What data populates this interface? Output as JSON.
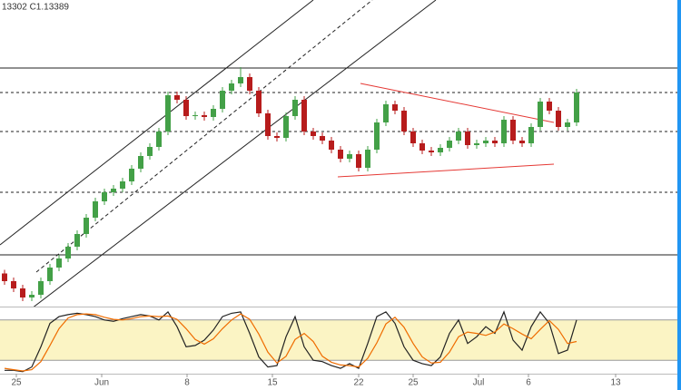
{
  "chart_data": {
    "type": "candlestick",
    "header_text": "13302  C1.13389",
    "x": [
      0,
      1,
      2,
      3,
      4,
      5,
      6,
      7,
      8,
      9,
      10,
      11,
      12,
      13,
      14,
      15,
      16,
      17,
      18,
      19,
      20,
      21,
      22,
      23,
      24,
      25,
      26,
      27,
      28,
      29,
      30,
      31,
      32,
      33,
      34,
      35,
      36,
      37,
      38,
      39,
      40,
      41,
      42,
      43,
      44,
      45,
      46,
      47,
      48,
      49,
      50,
      51,
      52,
      53,
      54,
      55,
      56,
      57,
      58,
      59,
      60,
      61,
      62,
      63
    ],
    "open": [
      1.094,
      1.0923,
      1.0907,
      1.0887,
      1.0893,
      1.0923,
      1.0953,
      1.0973,
      1.0999,
      1.1027,
      1.1063,
      1.1099,
      1.1119,
      1.1127,
      1.1143,
      1.1171,
      1.1199,
      1.1219,
      1.1253,
      1.1333,
      1.1323,
      1.1287,
      1.1289,
      1.1285,
      1.1303,
      1.1343,
      1.1359,
      1.1373,
      1.1343,
      1.1293,
      1.1243,
      1.1239,
      1.1287,
      1.1323,
      1.1253,
      1.1243,
      1.1233,
      1.1213,
      1.1193,
      1.1203,
      1.1173,
      1.1213,
      1.1273,
      1.1313,
      1.1299,
      1.1253,
      1.1227,
      1.1211,
      1.1207,
      1.1217,
      1.1233,
      1.1253,
      1.1223,
      1.1227,
      1.1233,
      1.1227,
      1.1279,
      1.1233,
      1.1227,
      1.1263,
      1.1319,
      1.1299,
      1.1263,
      1.1273
    ],
    "high": [
      1.0948,
      1.0931,
      1.0915,
      1.0901,
      1.0931,
      1.0961,
      1.0981,
      1.1007,
      1.1035,
      1.1071,
      1.1107,
      1.1127,
      1.1135,
      1.1151,
      1.1179,
      1.1207,
      1.1227,
      1.1261,
      1.1341,
      1.1341,
      1.1331,
      1.1297,
      1.1297,
      1.1311,
      1.1351,
      1.1367,
      1.1395,
      1.1381,
      1.1351,
      1.1301,
      1.1251,
      1.1295,
      1.1331,
      1.1331,
      1.1261,
      1.1251,
      1.1241,
      1.1221,
      1.1211,
      1.1211,
      1.1221,
      1.1281,
      1.1321,
      1.1321,
      1.1307,
      1.1261,
      1.1235,
      1.1219,
      1.1225,
      1.1241,
      1.1261,
      1.1261,
      1.1235,
      1.1241,
      1.1241,
      1.1287,
      1.1287,
      1.1241,
      1.1271,
      1.1327,
      1.1327,
      1.1307,
      1.1281,
      1.1347
    ],
    "low": [
      1.0915,
      1.0899,
      1.0879,
      1.0879,
      1.0885,
      1.0915,
      1.0945,
      1.0965,
      1.0991,
      1.1019,
      1.1055,
      1.1091,
      1.1111,
      1.1119,
      1.1135,
      1.1163,
      1.1191,
      1.1211,
      1.1245,
      1.1315,
      1.1279,
      1.1279,
      1.1277,
      1.1277,
      1.1295,
      1.1335,
      1.1351,
      1.1335,
      1.1285,
      1.1235,
      1.1231,
      1.1231,
      1.1279,
      1.1245,
      1.1235,
      1.1225,
      1.1205,
      1.1185,
      1.1185,
      1.1165,
      1.1165,
      1.1205,
      1.1265,
      1.1291,
      1.1245,
      1.1219,
      1.1203,
      1.1199,
      1.1199,
      1.1209,
      1.1225,
      1.1215,
      1.1215,
      1.1219,
      1.1219,
      1.1219,
      1.1225,
      1.1219,
      1.1219,
      1.1255,
      1.1291,
      1.1255,
      1.1255,
      1.1265
    ],
    "close": [
      1.0923,
      1.0907,
      1.0887,
      1.0893,
      1.0923,
      1.0953,
      1.0973,
      1.0999,
      1.1027,
      1.1063,
      1.1099,
      1.1119,
      1.1127,
      1.1143,
      1.1171,
      1.1199,
      1.1219,
      1.1253,
      1.1333,
      1.1323,
      1.1287,
      1.1289,
      1.1285,
      1.1303,
      1.1343,
      1.1359,
      1.1373,
      1.1343,
      1.1293,
      1.1243,
      1.1239,
      1.1287,
      1.1323,
      1.1253,
      1.1243,
      1.1233,
      1.1213,
      1.1193,
      1.1203,
      1.1173,
      1.1213,
      1.1273,
      1.1313,
      1.1299,
      1.1253,
      1.1227,
      1.1211,
      1.1207,
      1.1217,
      1.1233,
      1.1253,
      1.1223,
      1.1227,
      1.1233,
      1.1227,
      1.1279,
      1.1233,
      1.1227,
      1.1263,
      1.1319,
      1.1299,
      1.1263,
      1.1273,
      1.1339
    ],
    "up_color": "#43a047",
    "down_color": "#b71c1c",
    "xlim": [
      -0.5,
      74.5
    ],
    "ylim": [
      1.0863,
      1.1543
    ],
    "xticks": [
      {
        "value": 1.3,
        "label": "25"
      },
      {
        "value": 10.7,
        "label": "Jun"
      },
      {
        "value": 20.1,
        "label": "8"
      },
      {
        "value": 29.5,
        "label": "15"
      },
      {
        "value": 39,
        "label": "22"
      },
      {
        "value": 45,
        "label": "25"
      },
      {
        "value": 52.2,
        "label": "Jul"
      },
      {
        "value": 57.7,
        "label": "6"
      },
      {
        "value": 67.3,
        "label": "13"
      }
    ],
    "levels": [
      {
        "value": 1.1393,
        "style": "solid"
      },
      {
        "value": 1.0981,
        "style": "solid"
      },
      {
        "value": 1.1339,
        "style": "dashed"
      },
      {
        "value": 1.1253,
        "style": "dashed"
      },
      {
        "value": 1.1119,
        "style": "dashed"
      }
    ],
    "trendlines": [
      {
        "color": "#222222",
        "style": "solid",
        "x": [
          -0.5,
          34
        ],
        "y": [
          1.1003,
          1.1543
        ]
      },
      {
        "color": "#222222",
        "style": "solid",
        "x": [
          3,
          47.5
        ],
        "y": [
          1.0863,
          1.1543
        ]
      },
      {
        "color": "#222222",
        "style": "dashed",
        "x": [
          3.5,
          40.5
        ],
        "y": [
          1.0943,
          1.1543
        ]
      },
      {
        "color": "#e53935",
        "style": "solid",
        "x": [
          39.2,
          60.5
        ],
        "y": [
          1.1359,
          1.1273
        ]
      },
      {
        "color": "#e53935",
        "style": "solid",
        "x": [
          36.7,
          60.5
        ],
        "y": [
          1.1153,
          1.1181
        ]
      }
    ],
    "oscillator": {
      "ylim": [
        0,
        100
      ],
      "levels": [
        20,
        80
      ],
      "band_color": "#fbf4c4",
      "series": [
        {
          "color": "#222222",
          "values": [
            5,
            5,
            3,
            10,
            40,
            75,
            85,
            88,
            90,
            88,
            85,
            80,
            78,
            82,
            85,
            88,
            86,
            80,
            92,
            70,
            40,
            42,
            50,
            65,
            85,
            90,
            92,
            60,
            25,
            10,
            12,
            55,
            85,
            40,
            20,
            18,
            12,
            8,
            15,
            8,
            45,
            85,
            92,
            75,
            40,
            20,
            15,
            12,
            25,
            60,
            80,
            45,
            55,
            70,
            60,
            92,
            50,
            35,
            70,
            92,
            75,
            30,
            35,
            80
          ]
        },
        {
          "color": "#ef6c00",
          "values": [
            8,
            6,
            4,
            6,
            18,
            42,
            67,
            83,
            88,
            89,
            88,
            84,
            81,
            80,
            82,
            85,
            86,
            85,
            86,
            81,
            67,
            51,
            44,
            52,
            67,
            80,
            89,
            81,
            59,
            32,
            16,
            26,
            51,
            60,
            48,
            26,
            17,
            13,
            12,
            10,
            23,
            46,
            74,
            84,
            69,
            45,
            25,
            16,
            17,
            32,
            55,
            62,
            60,
            57,
            62,
            74,
            67,
            59,
            52,
            66,
            79,
            66,
            45,
            48
          ]
        }
      ]
    }
  }
}
